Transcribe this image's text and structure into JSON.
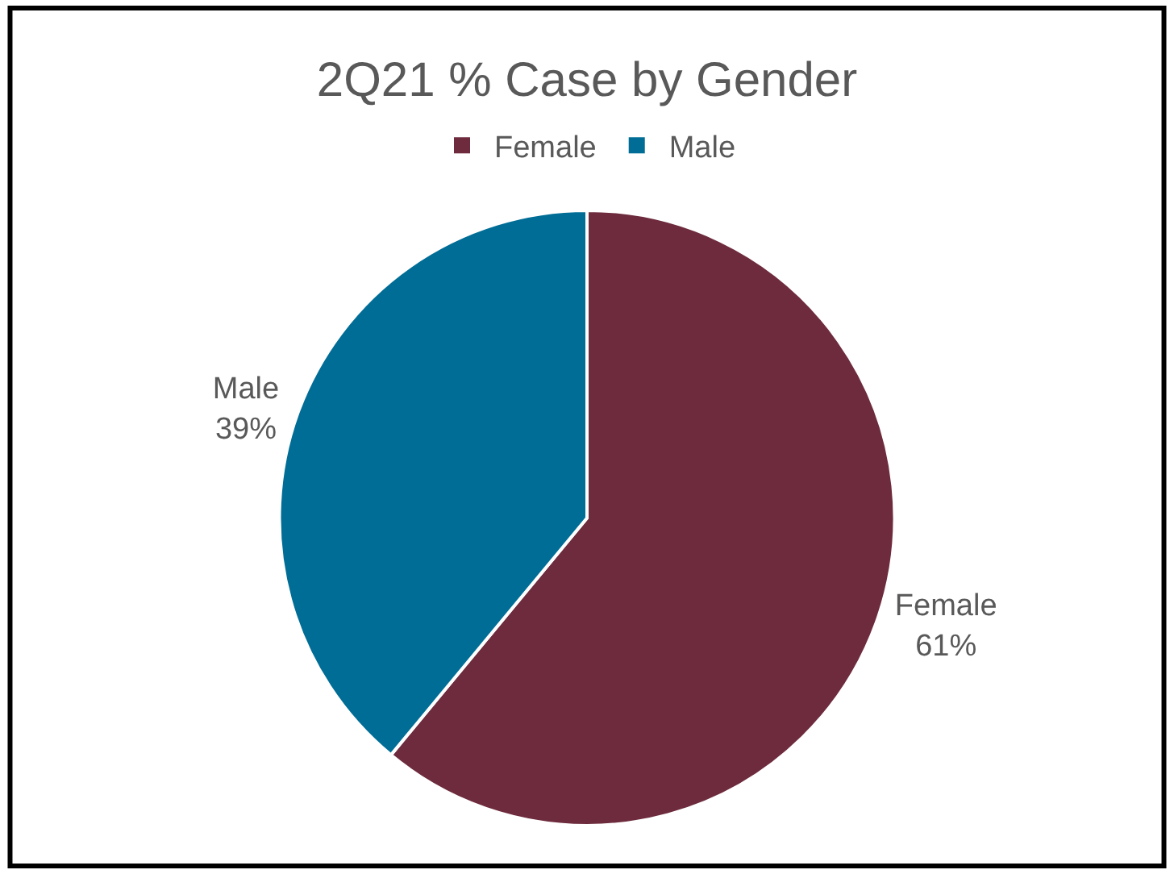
{
  "chart_data": {
    "type": "pie",
    "title": "2Q21 % Case by Gender",
    "categories": [
      "Female",
      "Male"
    ],
    "values": [
      61,
      39
    ],
    "colors": [
      "#6d2b3d",
      "#006d96"
    ],
    "value_labels": [
      "61%",
      "39%"
    ],
    "legend": "top"
  }
}
